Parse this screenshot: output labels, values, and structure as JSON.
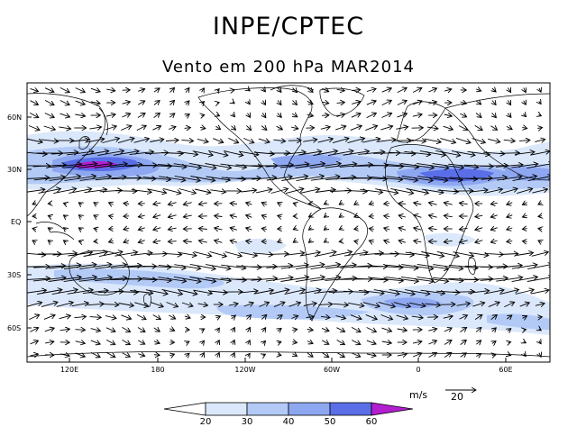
{
  "title": "INPE/CPTEC",
  "subtitle": "Vento em 200 hPa MAR2014",
  "lat_labels": [
    "60N",
    "30N",
    "EQ",
    "30S",
    "60S"
  ],
  "lon_labels": [
    "120E",
    "180",
    "120W",
    "60W",
    "0",
    "60E"
  ],
  "colorbar": {
    "unit": "m/s",
    "ticks": [
      "20",
      "30",
      "40",
      "50",
      "60"
    ],
    "colors": [
      "#ffffff",
      "#dbe8fb",
      "#b3caf7",
      "#8ea7f1",
      "#5a6ee8",
      "#b21ed0"
    ]
  },
  "vector_reference": {
    "value": "20"
  }
}
